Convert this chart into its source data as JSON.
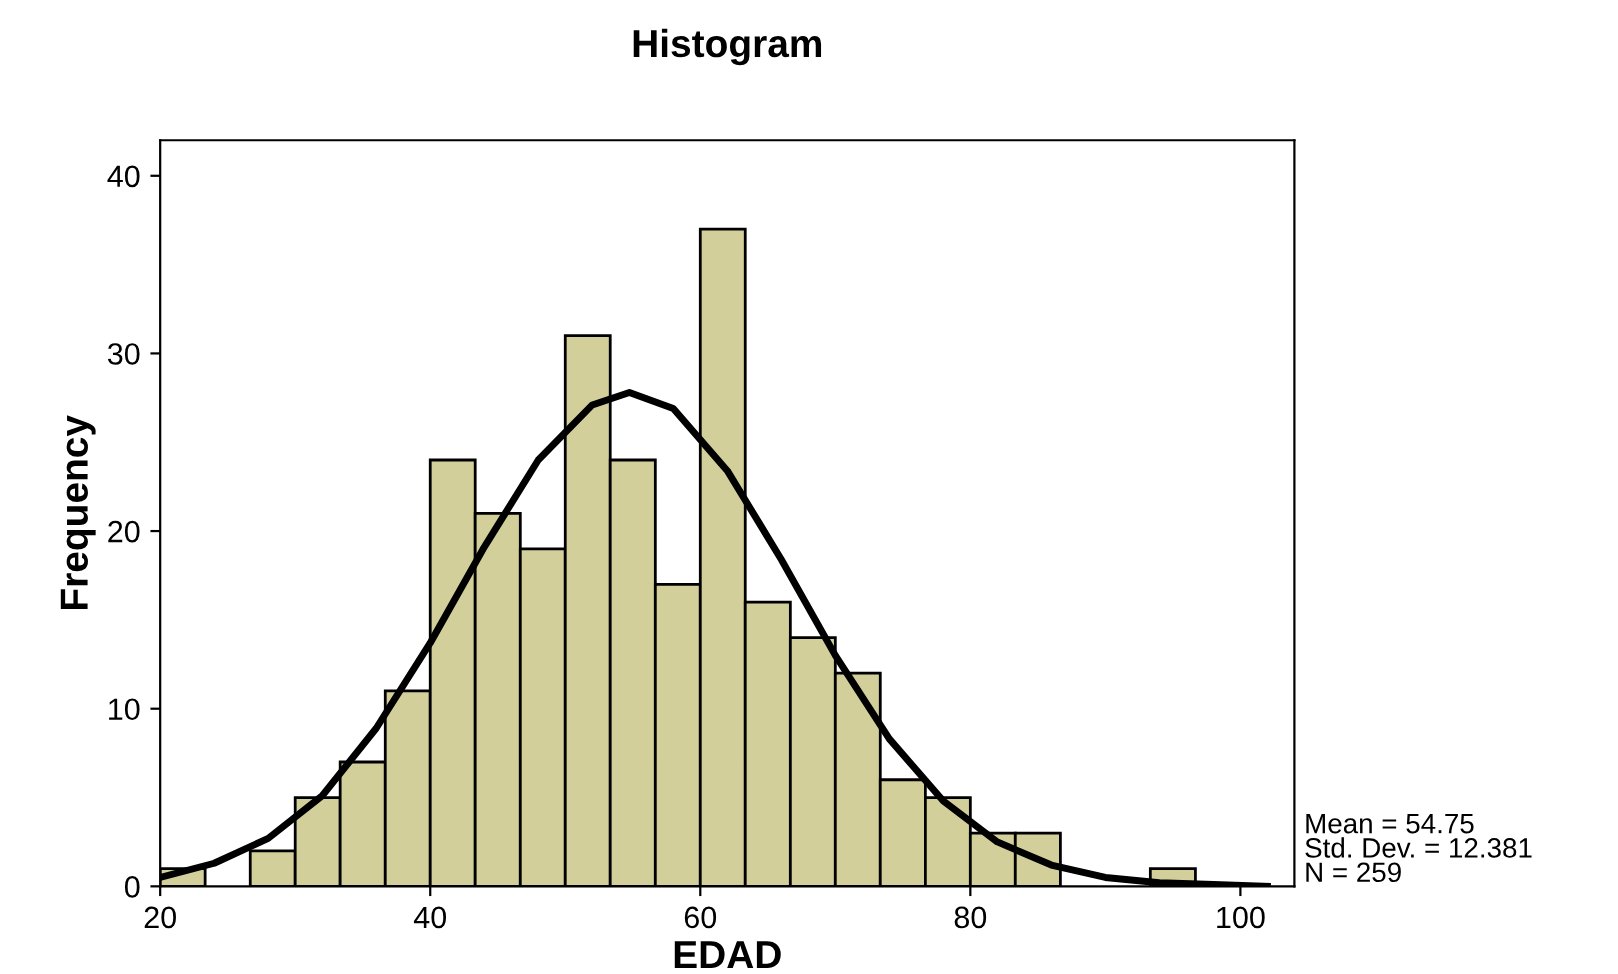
{
  "chart_data": {
    "type": "histogram",
    "title": "Histogram",
    "xlabel": "EDAD",
    "ylabel": "Frequency",
    "bins": [
      20,
      23.33,
      26.67,
      30,
      33.33,
      36.67,
      40,
      43.33,
      46.67,
      50,
      53.33,
      56.67,
      60,
      63.33,
      66.67,
      70,
      73.33,
      76.67,
      80,
      83.33,
      86.67,
      90,
      93.33,
      96.67,
      100,
      103.33
    ],
    "values": [
      1,
      0,
      2,
      5,
      7,
      11,
      24,
      21,
      19,
      31,
      24,
      17,
      37,
      16,
      14,
      12,
      6,
      5,
      3,
      3,
      0,
      0,
      1,
      0,
      0
    ],
    "color": "#d3cf9a",
    "series": [
      {
        "type": "line",
        "color": "#000000",
        "x": [
          20,
          24,
          28,
          32,
          36,
          40,
          44,
          48,
          52,
          54.75,
          58,
          62,
          66,
          70,
          74,
          78,
          82,
          86,
          90,
          94,
          98,
          102
        ],
        "values": [
          0.5,
          1.3,
          2.7,
          5.1,
          8.9,
          13.7,
          19.1,
          24.0,
          27.1,
          27.8,
          26.9,
          23.4,
          18.4,
          13.0,
          8.3,
          4.8,
          2.5,
          1.2,
          0.5,
          0.2,
          0.1,
          0.0
        ]
      }
    ],
    "xlim": [
      20,
      104
    ],
    "ylim": [
      0,
      42
    ],
    "xticks": [
      20,
      40,
      60,
      80,
      100
    ],
    "yticks": [
      0,
      10,
      20,
      30,
      40
    ],
    "grid": false,
    "legend": false,
    "annotations": [
      "Mean = 54.75",
      "Std. Dev. = 12.381",
      "N = 259"
    ]
  }
}
